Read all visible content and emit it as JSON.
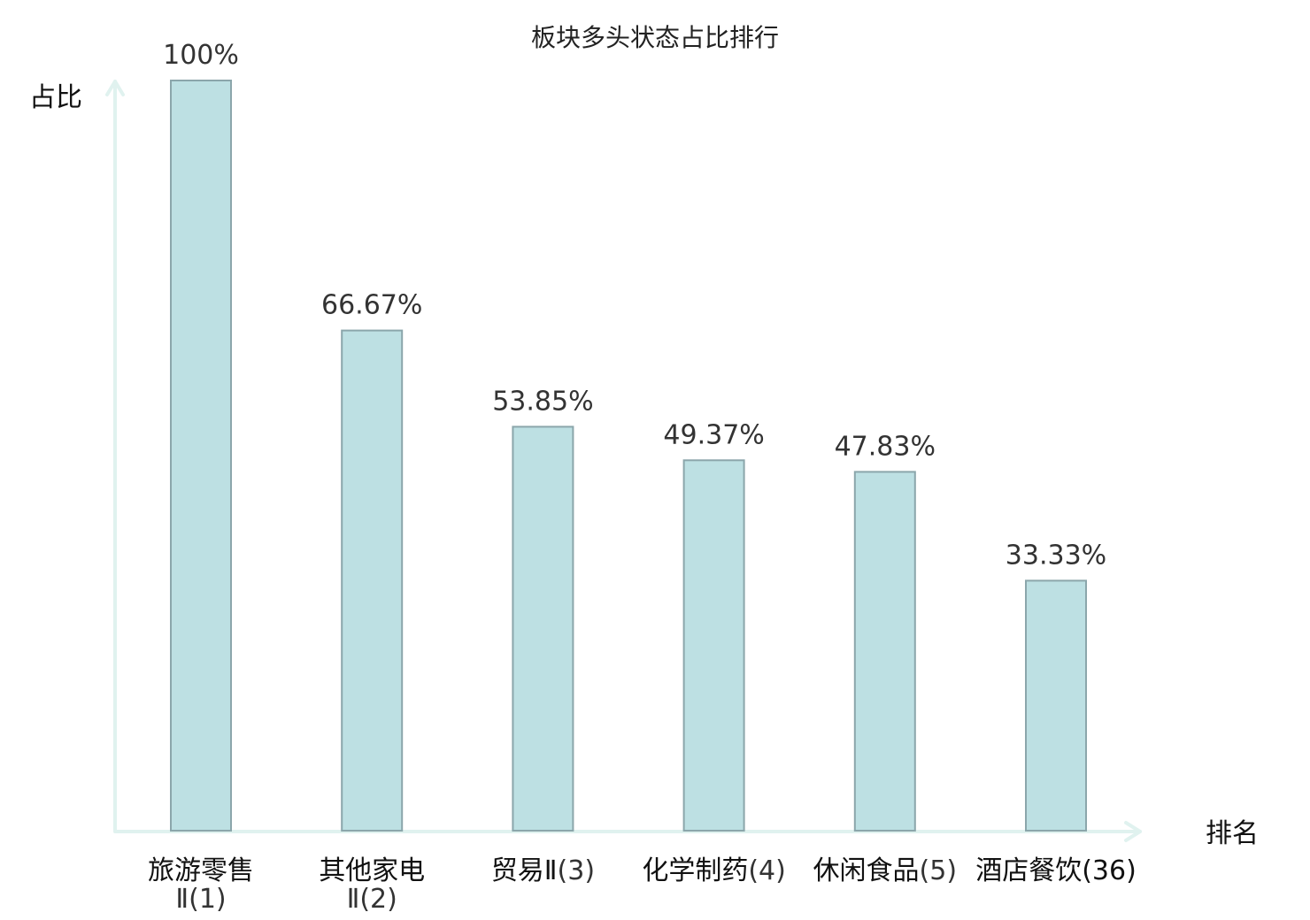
{
  "chart_data": {
    "type": "bar",
    "title": "板块多头状态占比排行",
    "ylabel": "占比",
    "xlabel": "排名",
    "ylim": [
      0,
      100
    ],
    "grid": false,
    "legend": "none",
    "categories": [
      {
        "name": "旅游零售",
        "name2": "Ⅱ",
        "rank": "(1)",
        "lines": 2,
        "highlight": false
      },
      {
        "name": "其他家电",
        "name2": "Ⅱ",
        "rank": "(2)",
        "lines": 2,
        "highlight": false
      },
      {
        "name": "贸易Ⅱ",
        "name2": "",
        "rank": "(3)",
        "lines": 1,
        "highlight": false
      },
      {
        "name": "化学制药",
        "name2": "",
        "rank": "(4)",
        "lines": 1,
        "highlight": false
      },
      {
        "name": "休闲食品",
        "name2": "",
        "rank": "(5)",
        "lines": 1,
        "highlight": false
      },
      {
        "name": "酒店餐饮",
        "name2": "",
        "rank": "(36)",
        "lines": 1,
        "highlight": true
      }
    ],
    "values": [
      100,
      66.67,
      53.85,
      49.37,
      47.83,
      33.33
    ],
    "value_labels": [
      "100%",
      "66.67%",
      "53.85%",
      "49.37%",
      "47.83%",
      "33.33%"
    ],
    "colors": {
      "bar_fill": "#bde0e3",
      "bar_stroke": "#8ba6ab",
      "axis": "#e0f2ef",
      "highlight": "#e0201c"
    }
  }
}
